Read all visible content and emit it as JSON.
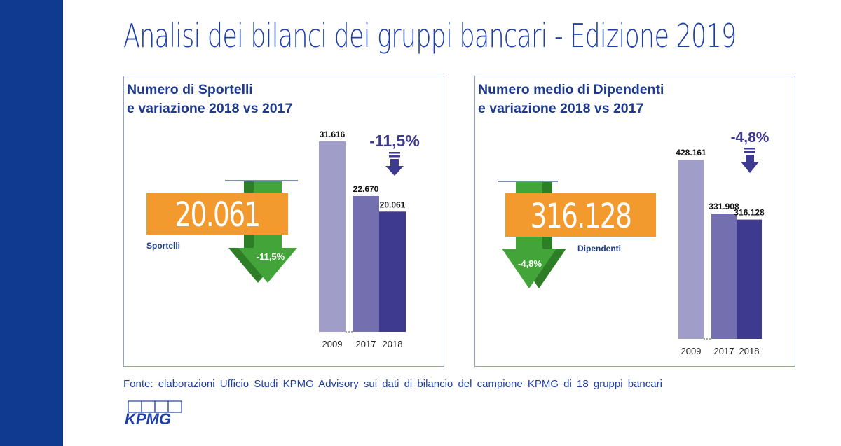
{
  "page_title": "Analisi dei bilanci dei gruppi bancari - Edizione 2019",
  "source_note": "Fonte: elaborazioni Ufficio Studi KPMG Advisory sui dati di bilancio del campione KPMG di 18 gruppi bancari",
  "logo_text": "KPMG",
  "colors": {
    "sidebar": "#0f3a8f",
    "bar_2009": "#a09dc9",
    "bar_2017": "#7470b0",
    "bar_2018": "#3d3a8f",
    "orange": "#f29a2e",
    "green": "#43a539",
    "title_blue": "#1e3fa6"
  },
  "panels": [
    {
      "title_line1": "Numero di Sportelli",
      "title_line2": "e variazione 2018 vs 2017",
      "big_number": "20.061",
      "big_label": "Sportelli",
      "arrow_pct": "-11,5%",
      "headline_pct": "-11,5%"
    },
    {
      "title_line1": "Numero medio di Dipendenti",
      "title_line2": "e variazione 2018 vs 2017",
      "big_number": "316.128",
      "big_label": "Dipendenti",
      "arrow_pct": "-4,8%",
      "headline_pct": "-4,8%"
    }
  ],
  "chart_data": [
    {
      "type": "bar",
      "title": "Numero di Sportelli e variazione 2018 vs 2017",
      "categories": [
        "2009",
        "2017",
        "2018"
      ],
      "values": [
        31616,
        22670,
        20061
      ],
      "data_labels": [
        "31.616",
        "22.670",
        "20.061"
      ],
      "change_2018_vs_2017": "-11,5%",
      "axis_break_between": [
        "2009",
        "2017"
      ]
    },
    {
      "type": "bar",
      "title": "Numero medio di Dipendenti e variazione 2018 vs 2017",
      "categories": [
        "2009",
        "2017",
        "2018"
      ],
      "values": [
        428161,
        331908,
        316128
      ],
      "data_labels": [
        "428.161",
        "331.908",
        "316.128"
      ],
      "change_2018_vs_2017": "-4,8%",
      "axis_break_between": [
        "2009",
        "2017"
      ]
    }
  ]
}
